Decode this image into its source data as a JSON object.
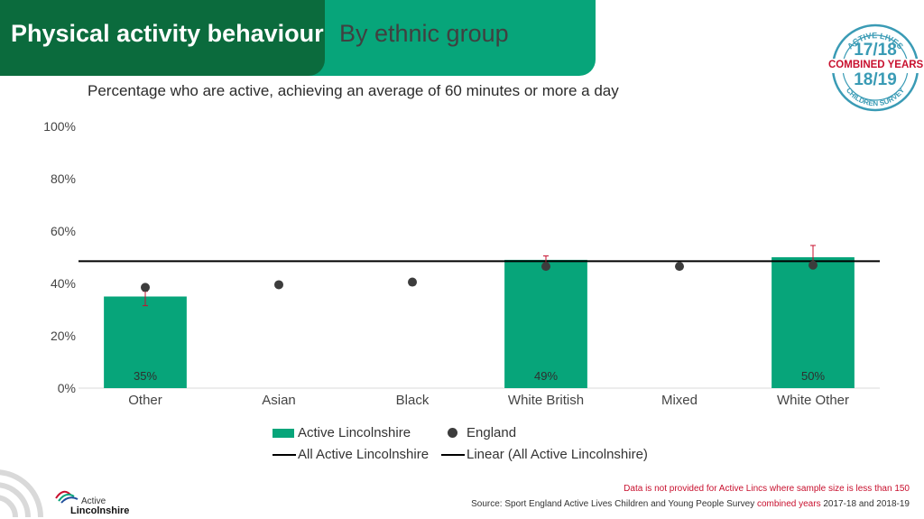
{
  "header": {
    "title": "Physical activity behaviour",
    "subtitle": "By ethnic group"
  },
  "badge": {
    "top_text": "ACTIVE LIVES",
    "year1": "17/18",
    "combined": "COMBINED YEARS",
    "year2": "18/19",
    "bottom_text": "CHILDREN SURVEY"
  },
  "chart_data": {
    "type": "bar",
    "title": "Percentage who are active, achieving an average of 60 minutes or more a day",
    "categories": [
      "Other",
      "Asian",
      "Black",
      "White British",
      "Mixed",
      "White Other"
    ],
    "series": [
      {
        "name": "Active Lincolnshire",
        "kind": "bar",
        "values": [
          35,
          null,
          null,
          49,
          null,
          50
        ],
        "labels": [
          "35%",
          "",
          "",
          "49%",
          "",
          "50%"
        ],
        "error": [
          [
            31.5,
            37
          ],
          null,
          null,
          [
            47,
            50.5
          ],
          null,
          [
            46,
            54.5
          ]
        ]
      },
      {
        "name": "England",
        "kind": "dot",
        "values": [
          38.5,
          39.5,
          40.5,
          46.5,
          46.5,
          47
        ]
      },
      {
        "name": "All Active Lincolnshire",
        "kind": "line",
        "value": 48.5
      },
      {
        "name": "Linear (All Active Lincolnshire)",
        "kind": "legend-only"
      }
    ],
    "yticks": [
      "0%",
      "20%",
      "40%",
      "60%",
      "80%",
      "100%"
    ],
    "ylim": [
      0,
      100
    ],
    "colors": {
      "bar": "#07a57a",
      "dot": "#3c3c3c",
      "line": "#000000",
      "error": "#c8102e"
    },
    "legend_position": "bottom"
  },
  "footer": {
    "note": "Data is not provided for Active Lincs where sample size is less than 150",
    "source_prefix": "Source: Sport England Active Lives Children and Young People Survey ",
    "source_highlight": "combined years",
    "source_suffix": " 2017-18 and 2018-19",
    "logo_line1": "Active",
    "logo_line2": "Lincolnshire"
  }
}
